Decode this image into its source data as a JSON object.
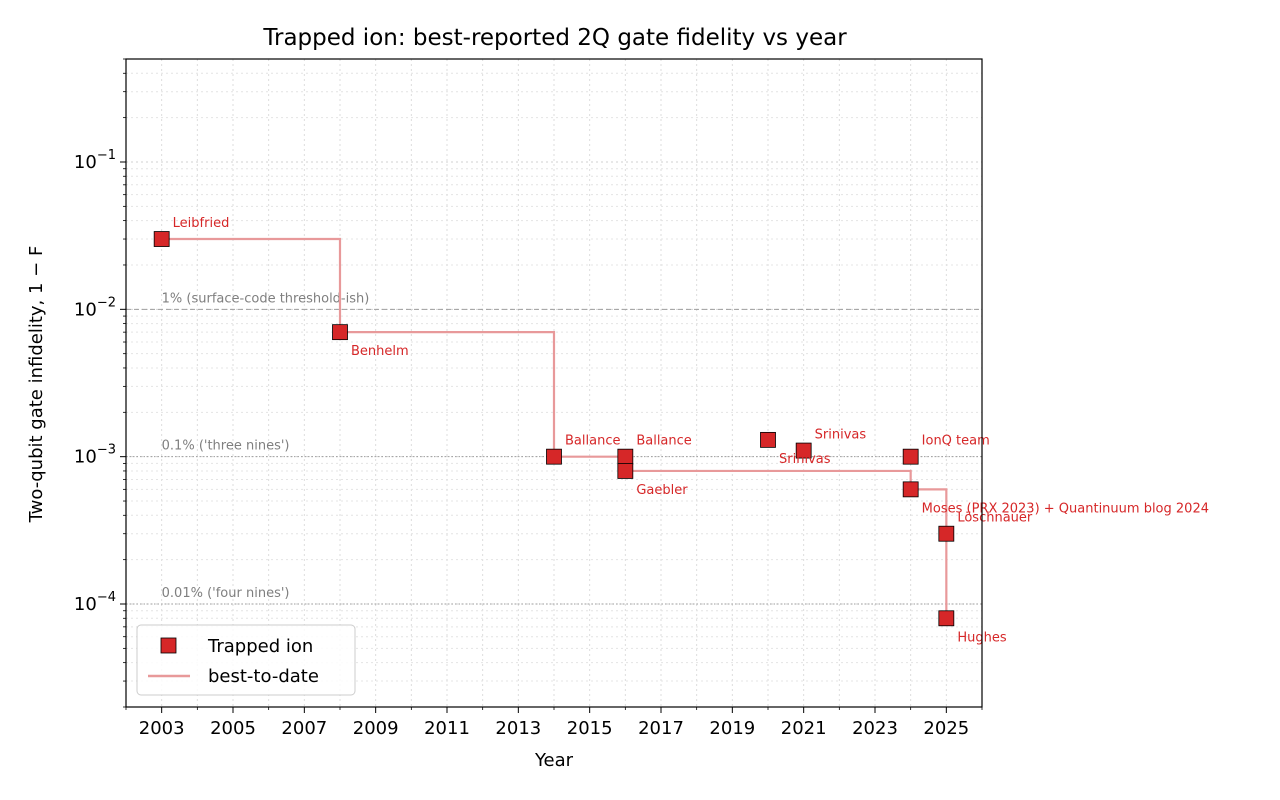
{
  "chart_data": {
    "type": "scatter",
    "title": "Trapped ion: best-reported 2Q gate fidelity vs year",
    "xlabel": "Year",
    "ylabel": "Two-qubit gate infidelity, 1 − F",
    "xlim": [
      2002,
      2026
    ],
    "ylim": [
      2e-05,
      0.5
    ],
    "yscale": "log",
    "grid": true,
    "legend_position": "bottom-left",
    "x_ticks": [
      2003,
      2005,
      2007,
      2009,
      2011,
      2013,
      2015,
      2017,
      2019,
      2021,
      2023,
      2025
    ],
    "y_ticks": [
      {
        "value": 0.1,
        "base": "10",
        "exp": "−1"
      },
      {
        "value": 0.01,
        "base": "10",
        "exp": "−2"
      },
      {
        "value": 0.001,
        "base": "10",
        "exp": "−3"
      },
      {
        "value": 0.0001,
        "base": "10",
        "exp": "−4"
      }
    ],
    "series": [
      {
        "name": "Trapped ion",
        "kind": "scatter",
        "color": "#d62728",
        "points": [
          {
            "x": 2003,
            "y": 0.03,
            "label": "Leibfried",
            "label_pos": "above-right"
          },
          {
            "x": 2008,
            "y": 0.007,
            "label": "Benhelm",
            "label_pos": "below-right"
          },
          {
            "x": 2014,
            "y": 0.001,
            "label": "Ballance",
            "label_pos": "above-right"
          },
          {
            "x": 2016,
            "y": 0.001,
            "label": "Ballance",
            "label_pos": "above-right"
          },
          {
            "x": 2016,
            "y": 0.0008,
            "label": "Gaebler",
            "label_pos": "below-right"
          },
          {
            "x": 2020,
            "y": 0.0013,
            "label": "Srinivas",
            "label_pos": "below-right"
          },
          {
            "x": 2021,
            "y": 0.0011,
            "label": "Srinivas",
            "label_pos": "above-right"
          },
          {
            "x": 2024,
            "y": 0.001,
            "label": "IonQ team",
            "label_pos": "above-right"
          },
          {
            "x": 2024,
            "y": 0.0006,
            "label": "Moses (PRX 2023) + Quantinuum blog 2024",
            "label_pos": "below-right"
          },
          {
            "x": 2025,
            "y": 0.0003,
            "label": "Löschnauer",
            "label_pos": "above-right"
          },
          {
            "x": 2025,
            "y": 8e-05,
            "label": "Hughes",
            "label_pos": "below-right"
          }
        ]
      },
      {
        "name": "best-to-date",
        "kind": "step",
        "color": "#e8999a",
        "points": [
          {
            "x": 2003,
            "y": 0.03
          },
          {
            "x": 2008,
            "y": 0.007
          },
          {
            "x": 2014,
            "y": 0.001
          },
          {
            "x": 2016,
            "y": 0.0008
          },
          {
            "x": 2024,
            "y": 0.0006
          },
          {
            "x": 2025,
            "y": 8e-05
          }
        ]
      }
    ],
    "reference_lines": [
      {
        "y": 0.01,
        "label": "1% (surface-code threshold-ish)",
        "style": "dashed"
      },
      {
        "y": 0.001,
        "label": "0.1% ('three nines')",
        "style": "dotted"
      },
      {
        "y": 0.0001,
        "label": "0.01% ('four nines')",
        "style": "dotted"
      }
    ]
  }
}
